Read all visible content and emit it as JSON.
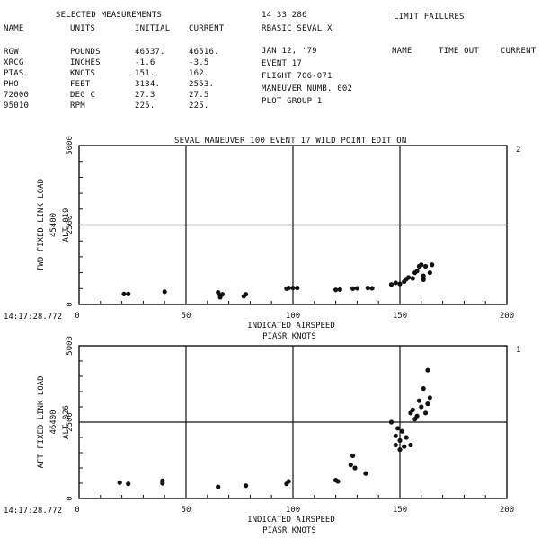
{
  "header": {
    "section_label": "SELECTED MEASUREMENTS",
    "col_name": "NAME",
    "col_units": "UNITS",
    "col_initial": "INITIAL",
    "col_current": "CURRENT",
    "program_id": "14 33 286",
    "program_name": "RBASIC  SEVAL X",
    "date": "JAN 12, '79",
    "event": "EVENT    17",
    "flight": "FLIGHT 706-071",
    "maneuver": "MANEUVER NUMB. 002",
    "plot_group": "PLOT GROUP 1",
    "limit_title": "LIMIT FAILURES",
    "limit_col_name": "NAME",
    "limit_col_time": "TIME OUT",
    "limit_col_current": "CURRENT"
  },
  "measurements": [
    {
      "name": "RGW",
      "units": "POUNDS",
      "initial": "46537.",
      "current": "46516."
    },
    {
      "name": "XRCG",
      "units": "INCHES",
      "initial": "-1.6",
      "current": "-3.5"
    },
    {
      "name": "PTAS",
      "units": "KNOTS",
      "initial": "151.",
      "current": "162."
    },
    {
      "name": "PHO",
      "units": "FEET",
      "initial": "3134.",
      "current": "2553."
    },
    {
      "name": "72000",
      "units": "DEG C",
      "initial": "27.3",
      "current": "27.5"
    },
    {
      "name": "95010",
      "units": "RPM",
      "initial": "225.",
      "current": "225."
    }
  ],
  "plot_title": "SEVAL MANEUVER 100 EVENT     17 WILD POINT EDIT ON",
  "chart_data": [
    {
      "type": "scatter",
      "page_number": "2",
      "timestamp": "14:17:28.772",
      "ylabel_lines": [
        "FWD FIXED LINK LOAD",
        "45400",
        "ALT 019"
      ],
      "xlabel": "INDICATED AIRSPEED",
      "xlabel_sub": "PIASR   KNOTS",
      "xlim": [
        0,
        200
      ],
      "ylim": [
        0,
        5000
      ],
      "xticks": [
        0,
        50,
        100,
        150,
        200
      ],
      "yticks": [
        0,
        2500,
        5000
      ],
      "ytick_labels": [
        "0",
        "2500",
        "5000"
      ],
      "grid": true,
      "points": [
        [
          21,
          330
        ],
        [
          23,
          330
        ],
        [
          40,
          400
        ],
        [
          65,
          380
        ],
        [
          66,
          280
        ],
        [
          66,
          230
        ],
        [
          67,
          320
        ],
        [
          77,
          260
        ],
        [
          78,
          320
        ],
        [
          97,
          500
        ],
        [
          98,
          520
        ],
        [
          100,
          520
        ],
        [
          102,
          520
        ],
        [
          120,
          460
        ],
        [
          122,
          470
        ],
        [
          128,
          500
        ],
        [
          130,
          510
        ],
        [
          135,
          520
        ],
        [
          137,
          510
        ],
        [
          146,
          630
        ],
        [
          148,
          680
        ],
        [
          150,
          650
        ],
        [
          152,
          720
        ],
        [
          153,
          800
        ],
        [
          154,
          850
        ],
        [
          156,
          820
        ],
        [
          157,
          1000
        ],
        [
          158,
          1050
        ],
        [
          159,
          1200
        ],
        [
          160,
          1250
        ],
        [
          161,
          900
        ],
        [
          161,
          780
        ],
        [
          162,
          1200
        ],
        [
          164,
          1000
        ],
        [
          165,
          1250
        ]
      ]
    },
    {
      "type": "scatter",
      "page_number": "1",
      "timestamp": "14:17:28.772",
      "ylabel_lines": [
        "AFT FIXED LINK LOAD",
        "46400",
        "ALT 026"
      ],
      "xlabel": "INDICATED AIRSPEED",
      "xlabel_sub": "PIASR   KNOTS",
      "xlim": [
        0,
        200
      ],
      "ylim": [
        0,
        5000
      ],
      "xticks": [
        0,
        50,
        100,
        150,
        200
      ],
      "yticks": [
        0,
        2500,
        5000
      ],
      "ytick_labels": [
        "0",
        "2500",
        "5000"
      ],
      "grid": true,
      "points": [
        [
          19,
          520
        ],
        [
          23,
          480
        ],
        [
          39,
          580
        ],
        [
          39,
          500
        ],
        [
          65,
          380
        ],
        [
          78,
          420
        ],
        [
          97,
          480
        ],
        [
          98,
          560
        ],
        [
          120,
          600
        ],
        [
          121,
          560
        ],
        [
          127,
          1100
        ],
        [
          128,
          1400
        ],
        [
          129,
          1000
        ],
        [
          134,
          820
        ],
        [
          146,
          2500
        ],
        [
          148,
          2050
        ],
        [
          148,
          1750
        ],
        [
          149,
          2300
        ],
        [
          150,
          1900
        ],
        [
          150,
          1600
        ],
        [
          151,
          2200
        ],
        [
          152,
          1700
        ],
        [
          153,
          2000
        ],
        [
          155,
          1750
        ],
        [
          155,
          2800
        ],
        [
          156,
          2900
        ],
        [
          157,
          2600
        ],
        [
          158,
          2700
        ],
        [
          159,
          3200
        ],
        [
          160,
          3000
        ],
        [
          161,
          3600
        ],
        [
          162,
          2800
        ],
        [
          163,
          3100
        ],
        [
          164,
          3300
        ],
        [
          163,
          4200
        ]
      ]
    }
  ]
}
